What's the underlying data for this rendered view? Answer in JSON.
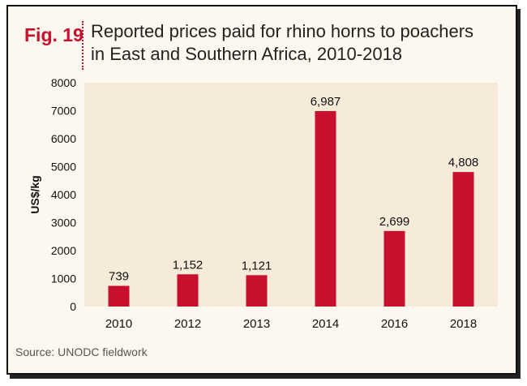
{
  "figure": {
    "label": "Fig. 19",
    "title_line1": "Reported prices paid for rhino horns to poachers",
    "title_line2": "in East and Southern Africa, 2010-2018",
    "source": "Source: UNODC fieldwork"
  },
  "colors": {
    "accent": "#c8102e",
    "bar": "#c8102e",
    "plot_background": "#f6ead9",
    "frame_background": "#fdf8ef"
  },
  "chart_data": {
    "type": "bar",
    "title": "Reported prices paid for rhino horns to poachers in East and Southern Africa, 2010-2018",
    "xlabel": "",
    "ylabel": "US$/kg",
    "categories": [
      "2010",
      "2012",
      "2013",
      "2014",
      "2016",
      "2018"
    ],
    "values": [
      739,
      1152,
      1121,
      6987,
      2699,
      4808
    ],
    "value_labels": [
      "739",
      "1,152",
      "1,121",
      "6,987",
      "2,699",
      "4,808"
    ],
    "ylim": [
      0,
      8000
    ],
    "yticks": [
      0,
      1000,
      2000,
      3000,
      4000,
      5000,
      6000,
      7000,
      8000
    ],
    "ytick_labels": [
      "0",
      "1000",
      "2000",
      "3000",
      "4000",
      "5000",
      "6000",
      "7000",
      "8000"
    ],
    "grid": false,
    "legend": "none"
  }
}
